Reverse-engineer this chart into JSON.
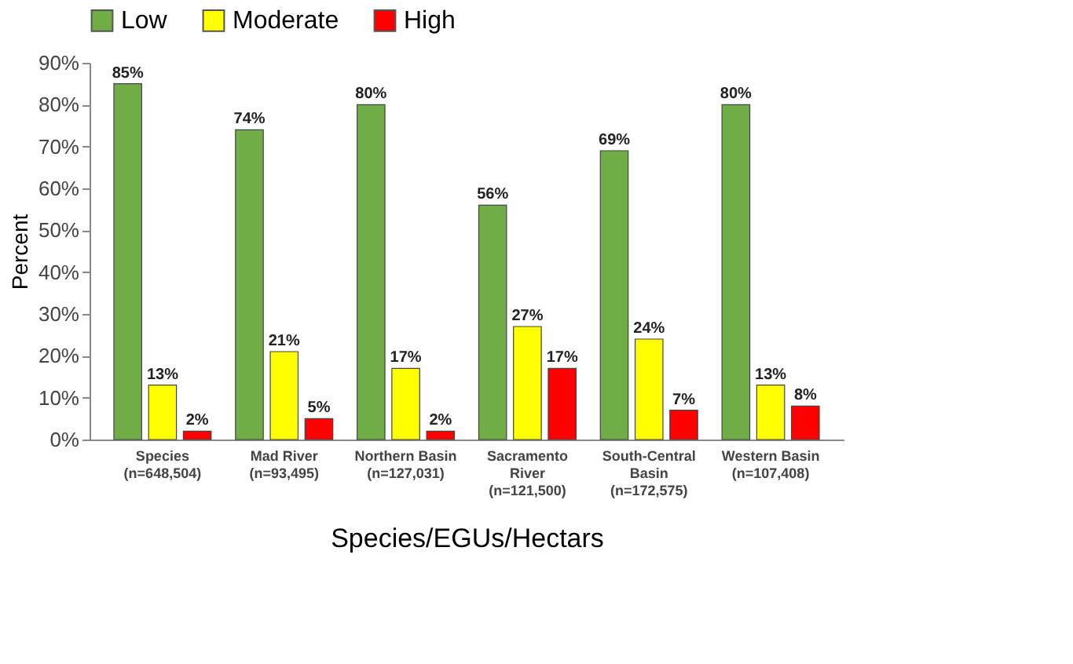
{
  "chart_data": {
    "type": "bar",
    "xlabel": "Species/EGUs/Hectars",
    "ylabel": "Percent",
    "categories": [
      "Species\n(n=648,504)",
      "Mad River\n(n=93,495)",
      "Northern Basin\n(n=127,031)",
      "Sacramento\nRiver\n(n=121,500)",
      "South-Central\nBasin\n(n=172,575)",
      "Western Basin\n(n=107,408)"
    ],
    "series": [
      {
        "name": "Low",
        "color": "#70ad47",
        "values": [
          85,
          74,
          80,
          56,
          69,
          80
        ],
        "value_labels": [
          "85%",
          "74%",
          "80%",
          "56%",
          "69%",
          "80%"
        ]
      },
      {
        "name": "Moderate",
        "color": "#ffff00",
        "values": [
          13,
          21,
          17,
          27,
          24,
          13
        ],
        "value_labels": [
          "13%",
          "21%",
          "17%",
          "27%",
          "24%",
          "13%"
        ]
      },
      {
        "name": "High",
        "color": "#ff0000",
        "values": [
          2,
          5,
          2,
          17,
          7,
          8
        ],
        "value_labels": [
          "2%",
          "5%",
          "2%",
          "17%",
          "7%",
          "8%"
        ]
      }
    ],
    "ylim": [
      0,
      90
    ],
    "yticks": [
      {
        "value": 0,
        "label": "0%"
      },
      {
        "value": 10,
        "label": "10%"
      },
      {
        "value": 20,
        "label": "20%"
      },
      {
        "value": 30,
        "label": "30%"
      },
      {
        "value": 40,
        "label": "40%"
      },
      {
        "value": 50,
        "label": "50%"
      },
      {
        "value": 60,
        "label": "60%"
      },
      {
        "value": 70,
        "label": "70%"
      },
      {
        "value": 80,
        "label": "80%"
      },
      {
        "value": 90,
        "label": "90%"
      }
    ],
    "grid": false,
    "legend": "top"
  }
}
